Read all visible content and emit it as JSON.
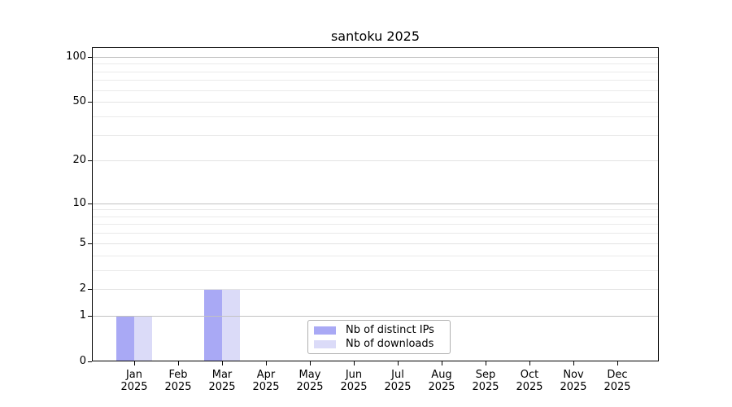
{
  "chart_data": {
    "type": "bar",
    "title": "santoku 2025",
    "categories": [
      "Jan 2025",
      "Feb 2025",
      "Mar 2025",
      "Apr 2025",
      "May 2025",
      "Jun 2025",
      "Jul 2025",
      "Aug 2025",
      "Sep 2025",
      "Oct 2025",
      "Nov 2025",
      "Dec 2025"
    ],
    "series": [
      {
        "name": "Nb of distinct IPs",
        "color": "#a9a9f5",
        "values": [
          1,
          0,
          2,
          0,
          0,
          0,
          0,
          0,
          0,
          0,
          0,
          0
        ]
      },
      {
        "name": "Nb of downloads",
        "color": "#dbdbf8",
        "values": [
          1,
          0,
          2,
          0,
          0,
          0,
          0,
          0,
          0,
          0,
          0,
          0
        ]
      }
    ],
    "xlabel": "",
    "ylabel": "",
    "yscale": "log1p",
    "ylim": [
      0,
      116
    ],
    "yticks": [
      0,
      1,
      2,
      5,
      10,
      20,
      50,
      100
    ],
    "major_gridlines": [
      1,
      10,
      100
    ],
    "mid_gridlines": [
      2,
      5,
      20,
      50
    ],
    "minor_gridlines": [
      3,
      4,
      6,
      7,
      8,
      9,
      30,
      40,
      60,
      70,
      80,
      90
    ],
    "grid": true,
    "legend_position": "lower center"
  },
  "colors": {
    "major_grid": "#c2c2c2",
    "mid_grid": "#e3e3e3",
    "minor_grid": "#eaeaea",
    "spine": "#000000",
    "legend_border": "#b0b0b0",
    "background": "#ffffff"
  }
}
